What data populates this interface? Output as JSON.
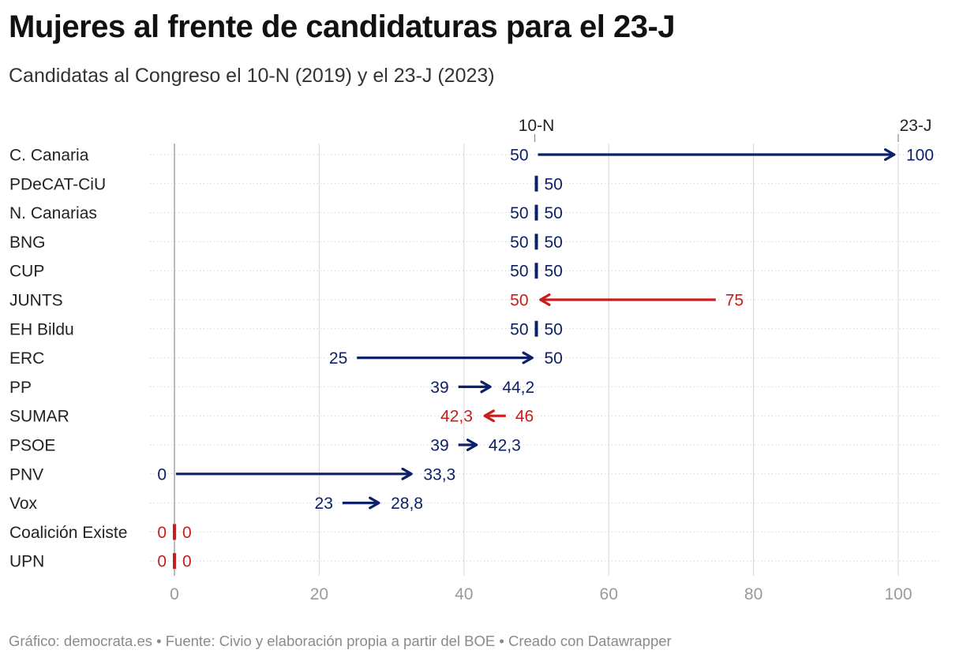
{
  "title": "Mujeres al frente de candidaturas para el 23-J",
  "subtitle": "Candidatas al Congreso el 10-N (2019) y el 23-J (2023)",
  "footer": "Gráfico: democrata.es • Fuente: Civio y elaboración propia a partir del BOE • Creado con Datawrapper",
  "chart_data": {
    "type": "arrow",
    "x_ticks": [
      0,
      20,
      40,
      60,
      80,
      100
    ],
    "xlim": [
      0,
      100
    ],
    "grid": true,
    "legend": {
      "start_label": "10-N",
      "end_label": "23-J",
      "placement": "top"
    },
    "colors": {
      "increase": "#0c2169",
      "decrease": "#c71e1d",
      "grid": "#dcdcdc",
      "axis": "#bbbbbb"
    },
    "rows": [
      {
        "label": "C. Canaria",
        "n10": 50,
        "j23": 100,
        "n10_text": "50",
        "j23_text": "100",
        "color": "#0c2169"
      },
      {
        "label": "PDeCAT-CiU",
        "n10": 50,
        "j23": 50,
        "n10_text": "",
        "j23_text": "50",
        "color": "#0c2169"
      },
      {
        "label": "N. Canarias",
        "n10": 50,
        "j23": 50,
        "n10_text": "50",
        "j23_text": "50",
        "color": "#0c2169"
      },
      {
        "label": "BNG",
        "n10": 50,
        "j23": 50,
        "n10_text": "50",
        "j23_text": "50",
        "color": "#0c2169"
      },
      {
        "label": "CUP",
        "n10": 50,
        "j23": 50,
        "n10_text": "50",
        "j23_text": "50",
        "color": "#0c2169"
      },
      {
        "label": "JUNTS",
        "n10": 75,
        "j23": 50,
        "n10_text": "75",
        "j23_text": "50",
        "color": "#c71e1d"
      },
      {
        "label": "EH Bildu",
        "n10": 50,
        "j23": 50,
        "n10_text": "50",
        "j23_text": "50",
        "color": "#0c2169"
      },
      {
        "label": "ERC",
        "n10": 25,
        "j23": 50,
        "n10_text": "25",
        "j23_text": "50",
        "color": "#0c2169"
      },
      {
        "label": "PP",
        "n10": 39,
        "j23": 44.2,
        "n10_text": "39",
        "j23_text": "44,2",
        "color": "#0c2169"
      },
      {
        "label": "SUMAR",
        "n10": 46,
        "j23": 42.3,
        "n10_text": "46",
        "j23_text": "42,3",
        "color": "#c71e1d"
      },
      {
        "label": "PSOE",
        "n10": 39,
        "j23": 42.3,
        "n10_text": "39",
        "j23_text": "42,3",
        "color": "#0c2169"
      },
      {
        "label": "PNV",
        "n10": 0,
        "j23": 33.3,
        "n10_text": "0",
        "j23_text": "33,3",
        "color": "#0c2169"
      },
      {
        "label": "Vox",
        "n10": 23,
        "j23": 28.8,
        "n10_text": "23",
        "j23_text": "28,8",
        "color": "#0c2169"
      },
      {
        "label": "Coalición Existe",
        "n10": 0,
        "j23": 0,
        "n10_text": "0",
        "j23_text": "0",
        "color": "#c71e1d"
      },
      {
        "label": "UPN",
        "n10": 0,
        "j23": 0,
        "n10_text": "0",
        "j23_text": "0",
        "color": "#c71e1d"
      }
    ]
  }
}
